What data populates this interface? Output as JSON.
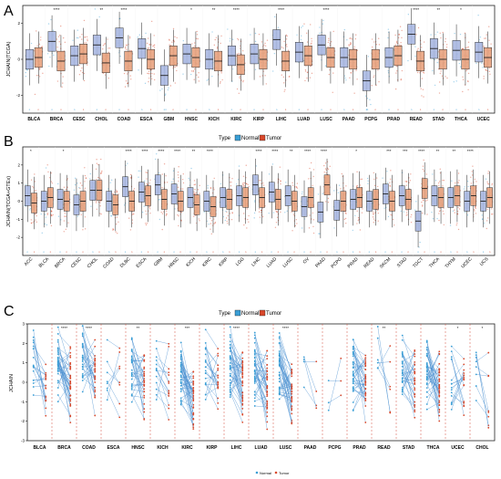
{
  "colors": {
    "normal": "#3a9fd6",
    "tumor": "#d9482b",
    "normal_fill": "#a9b8e2",
    "tumor_fill": "#e8a37f",
    "dash": "#d14b3a",
    "line": "#4a8fd0"
  },
  "panels": [
    {
      "tag": "A",
      "kind": "box-paired",
      "ylabel": "JCHAIN(TCGA)",
      "legend_title": "",
      "legend": []
    },
    {
      "tag": "B",
      "kind": "box-paired",
      "ylabel": "JCHAIN(TCGA+GTEx)",
      "legend_title": "Type",
      "legend": [
        "Normal",
        "Tumor"
      ]
    },
    {
      "tag": "C",
      "kind": "paired-lines",
      "ylabel": "JCHAIN",
      "legend_title": "Type",
      "legend": [
        "Normal",
        "Tumor"
      ],
      "bottom_legend": [
        "Normal",
        "Tumor"
      ]
    }
  ],
  "chart_data": [
    {
      "type": "box",
      "panel": "A",
      "ylabel": "JCHAIN(TCGA)",
      "categories": [
        "BLCA",
        "BRCA",
        "CESC",
        "CHOL",
        "COAD",
        "ESCA",
        "GBM",
        "HNSC",
        "KICH",
        "KIRC",
        "KIRP",
        "LIHC",
        "LUAD",
        "LUSC",
        "PAAD",
        "PCPG",
        "PRAD",
        "READ",
        "STAD",
        "THCA",
        "UCEC"
      ],
      "ylim": [
        -3,
        3
      ],
      "yticks": [
        -2,
        0,
        2
      ],
      "significance": [
        "",
        "****",
        "",
        "**",
        "****",
        "",
        "",
        "*",
        "**",
        "****",
        "",
        "****",
        "",
        "****",
        "",
        "",
        "",
        "****",
        "**",
        "*",
        ""
      ],
      "series": [
        {
          "name": "Normal",
          "medians": [
            0.0,
            1.0,
            0.2,
            0.8,
            1.2,
            0.6,
            -0.9,
            0.3,
            0.0,
            0.2,
            0.3,
            1.1,
            0.4,
            0.8,
            0.1,
            -1.2,
            0.1,
            1.4,
            0.6,
            0.5,
            0.4
          ]
        },
        {
          "name": "Tumor",
          "medians": [
            0.1,
            -0.1,
            0.3,
            -0.2,
            -0.1,
            0.0,
            0.2,
            0.1,
            -0.1,
            -0.3,
            0.0,
            -0.1,
            0.2,
            0.1,
            0.0,
            0.0,
            0.2,
            -0.1,
            0.0,
            0.0,
            0.1
          ]
        }
      ]
    },
    {
      "type": "box",
      "panel": "B",
      "ylabel": "JCHAIN(TCGA+GTEx)",
      "categories": [
        "ACC",
        "BLCA",
        "BRCA",
        "CESC",
        "CHOL",
        "COAD",
        "DLBC",
        "ESCA",
        "GBM",
        "HNSC",
        "KICH",
        "KIRC",
        "KIRP",
        "LGG",
        "LIHC",
        "LUAD",
        "LUSC",
        "OV",
        "PAAD",
        "PCPG",
        "PRAD",
        "READ",
        "SKCM",
        "STAD",
        "TGCT",
        "THCA",
        "THYM",
        "UCEC",
        "UCS"
      ],
      "ylim": [
        -3,
        3
      ],
      "yticks": [
        -2,
        -1,
        0,
        1,
        2
      ],
      "significance": [
        "*",
        "",
        "*",
        "",
        "",
        "",
        "****",
        "****",
        "****",
        "****",
        "**",
        "****",
        "",
        "",
        "****",
        "****",
        "**",
        "****",
        "****",
        "",
        "*",
        "",
        "***",
        "***",
        "****",
        "**",
        "**",
        "****",
        ""
      ],
      "series": [
        {
          "name": "Normal",
          "medians": [
            0.3,
            0.0,
            0.1,
            -0.2,
            0.6,
            0.0,
            0.8,
            0.5,
            0.9,
            0.4,
            0.2,
            0.0,
            0.2,
            0.3,
            0.9,
            0.5,
            0.3,
            -0.3,
            -0.6,
            -0.5,
            0.1,
            0.0,
            0.4,
            0.3,
            -1.1,
            0.3,
            0.2,
            0.0,
            0.0
          ]
        },
        {
          "name": "Tumor",
          "medians": [
            -0.1,
            0.2,
            0.0,
            0.0,
            0.6,
            -0.2,
            0.0,
            0.3,
            0.1,
            0.0,
            -0.2,
            -0.3,
            0.1,
            0.2,
            0.2,
            0.1,
            0.0,
            0.2,
            0.9,
            0.0,
            0.2,
            0.1,
            0.0,
            0.1,
            0.7,
            0.2,
            0.3,
            0.3,
            0.2
          ]
        }
      ]
    },
    {
      "type": "line",
      "panel": "C",
      "ylabel": "JCHAIN",
      "categories": [
        "BLCA",
        "BRCA",
        "COAD",
        "ESCA",
        "HNSC",
        "KICH",
        "KIRC",
        "KIRP",
        "LIHC",
        "LUAD",
        "LUSC",
        "PAAD",
        "PCPG",
        "PRAD",
        "READ",
        "STAD",
        "THCA",
        "UCEC",
        "CHOL"
      ],
      "ylim": [
        -3,
        3
      ],
      "yticks": [
        -3,
        -2,
        -1,
        0,
        1,
        2,
        3
      ],
      "significance": [
        "",
        "****",
        "****",
        "",
        "**",
        "",
        "***",
        "",
        "****",
        "",
        "****",
        "",
        "",
        "",
        "**",
        "",
        "",
        "*",
        "*"
      ],
      "pairs_per_group": [
        18,
        40,
        30,
        8,
        32,
        14,
        40,
        22,
        40,
        38,
        40,
        4,
        3,
        40,
        6,
        30,
        40,
        16,
        8
      ],
      "series": [
        {
          "name": "Normal",
          "means": [
            0.8,
            0.9,
            1.2,
            0.5,
            0.4,
            0.3,
            0.2,
            0.6,
            1.0,
            0.8,
            1.0,
            0.3,
            0.4,
            0.3,
            1.0,
            0.6,
            0.6,
            0.4,
            0.5
          ]
        },
        {
          "name": "Tumor",
          "means": [
            -0.3,
            -0.2,
            0.3,
            -0.2,
            0.0,
            -0.1,
            -0.9,
            -0.1,
            -0.3,
            -0.3,
            -0.4,
            0.0,
            0.6,
            -0.1,
            0.1,
            -0.1,
            -0.1,
            -0.4,
            -0.5
          ]
        }
      ]
    }
  ]
}
